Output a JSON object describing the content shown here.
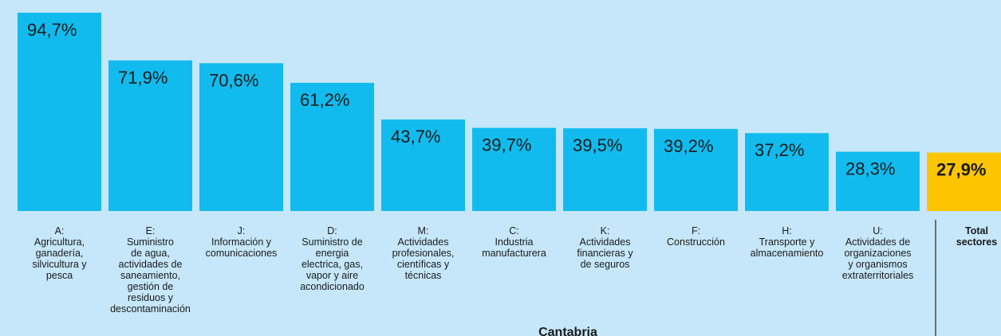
{
  "chart_data": {
    "type": "bar",
    "title": "Cantabria",
    "categories": [
      "A:\nAgricultura,\nganadería,\nsilvicultura y\npesca",
      "E:\nSuministro\nde agua,\nactividades de\nsaneamiento,\ngestión de\nresiduos y\ndescontaminación",
      "J:\nInformación y\ncomunicaciones",
      "D:\nSuministro de\nenergia\nelectrica, gas,\nvapor y aire\nacondicionado",
      "M:\nActividades\nprofesionales,\ncientíficas y\ntécnicas",
      "C:\nIndustria\nmanufacturera",
      "K:\nActividades\nfinancieras y\nde seguros",
      "F:\nConstrucción",
      "H:\nTransporte y\nalmacenamiento",
      "U:\nActividades de\norganizaciones\ny organismos\nextraterritoriales",
      "Total\nsectores"
    ],
    "values": [
      94.7,
      71.9,
      70.6,
      61.2,
      43.7,
      39.7,
      39.5,
      39.2,
      37.2,
      28.3,
      27.9
    ],
    "value_labels": [
      "94,7%",
      "71,9%",
      "70,6%",
      "61,2%",
      "43,7%",
      "39,7%",
      "39,5%",
      "39,2%",
      "37,2%",
      "28,3%",
      "27,9%"
    ],
    "colors": [
      "#12bbee",
      "#12bbee",
      "#12bbee",
      "#12bbee",
      "#12bbee",
      "#12bbee",
      "#12bbee",
      "#12bbee",
      "#12bbee",
      "#12bbee",
      "#fcc500"
    ]
  }
}
